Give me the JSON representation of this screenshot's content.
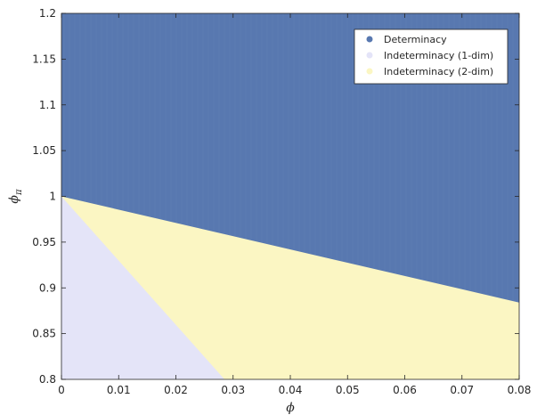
{
  "chart_data": {
    "type": "area",
    "xlabel": "ϕ",
    "ylabel": "ϕπ",
    "xlim": [
      0,
      0.08
    ],
    "ylim": [
      0.8,
      1.2
    ],
    "x_ticks": [
      "0",
      "0.01",
      "0.02",
      "0.03",
      "0.04",
      "0.05",
      "0.06",
      "0.07",
      "0.08"
    ],
    "y_ticks": [
      "0.8",
      "0.85",
      "0.9",
      "0.95",
      "1",
      "1.05",
      "1.1",
      "1.15",
      "1.2"
    ],
    "grid": false,
    "legend_position": "top-right",
    "series": [
      {
        "name": "Determinacy",
        "color": "#5878b0",
        "region": "above upper boundary",
        "boundary_x": [
          0,
          0.08
        ],
        "boundary_y": [
          1.0,
          0.884
        ]
      },
      {
        "name": "Indeterminacy (1-dim)",
        "color": "#e4e4f8",
        "region": "below lower boundary",
        "boundary_x": [
          0,
          0.0285
        ],
        "boundary_y": [
          1.0,
          0.8
        ]
      },
      {
        "name": "Indeterminacy (2-dim)",
        "color": "#fbf6c3",
        "region": "between boundaries"
      }
    ]
  }
}
